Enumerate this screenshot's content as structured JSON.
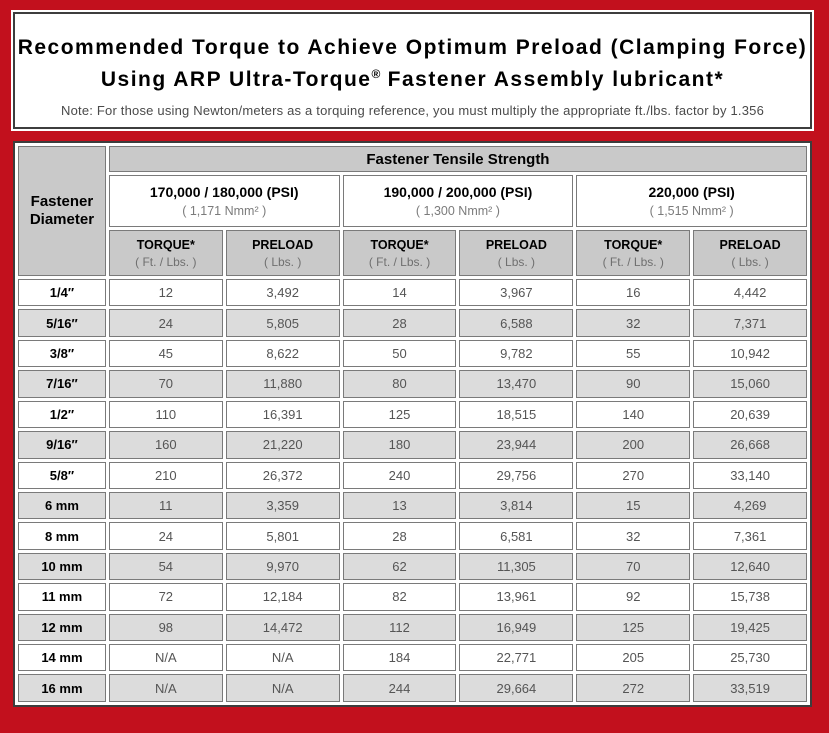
{
  "colors": {
    "frame_red": "#c2101d",
    "dark_border": "#3d3d3d",
    "header_gray": "#c9c9c9",
    "stripe_gray": "#dcdcdc",
    "value_text": "#555555"
  },
  "title": {
    "line1": "Recommended Torque to Achieve Optimum Preload (Clamping Force)",
    "line2_pre": "Using ARP Ultra-Torque",
    "line2_reg": "®",
    "line2_post": " Fastener Assembly lubricant*",
    "note": "Note: For those using Newton/meters as a torquing reference, you must multiply the appropriate ft./lbs. factor by 1.356"
  },
  "table": {
    "corner_header": "Fastener Diameter",
    "group_header": "Fastener Tensile Strength",
    "strength_groups": [
      {
        "psi": "170,000 / 180,000 (PSI)",
        "nmm": "( 1,171 Nmm² )"
      },
      {
        "psi": "190,000 / 200,000 (PSI)",
        "nmm": "( 1,300 Nmm² )"
      },
      {
        "psi": "220,000 (PSI)",
        "nmm": "( 1,515 Nmm² )"
      }
    ],
    "col_headers": [
      {
        "label": "TORQUE*",
        "sub": "( Ft. / Lbs. )"
      },
      {
        "label": "PRELOAD",
        "sub": "( Lbs. )"
      }
    ],
    "rows": [
      {
        "diameter": "1/4″",
        "values": [
          "12",
          "3,492",
          "14",
          "3,967",
          "16",
          "4,442"
        ]
      },
      {
        "diameter": "5/16″",
        "values": [
          "24",
          "5,805",
          "28",
          "6,588",
          "32",
          "7,371"
        ]
      },
      {
        "diameter": "3/8″",
        "values": [
          "45",
          "8,622",
          "50",
          "9,782",
          "55",
          "10,942"
        ]
      },
      {
        "diameter": "7/16″",
        "values": [
          "70",
          "11,880",
          "80",
          "13,470",
          "90",
          "15,060"
        ]
      },
      {
        "diameter": "1/2″",
        "values": [
          "110",
          "16,391",
          "125",
          "18,515",
          "140",
          "20,639"
        ]
      },
      {
        "diameter": "9/16″",
        "values": [
          "160",
          "21,220",
          "180",
          "23,944",
          "200",
          "26,668"
        ]
      },
      {
        "diameter": "5/8″",
        "values": [
          "210",
          "26,372",
          "240",
          "29,756",
          "270",
          "33,140"
        ]
      },
      {
        "diameter": "6 mm",
        "values": [
          "11",
          "3,359",
          "13",
          "3,814",
          "15",
          "4,269"
        ]
      },
      {
        "diameter": "8 mm",
        "values": [
          "24",
          "5,801",
          "28",
          "6,581",
          "32",
          "7,361"
        ]
      },
      {
        "diameter": "10 mm",
        "values": [
          "54",
          "9,970",
          "62",
          "11,305",
          "70",
          "12,640"
        ]
      },
      {
        "diameter": "11 mm",
        "values": [
          "72",
          "12,184",
          "82",
          "13,961",
          "92",
          "15,738"
        ]
      },
      {
        "diameter": "12 mm",
        "values": [
          "98",
          "14,472",
          "112",
          "16,949",
          "125",
          "19,425"
        ]
      },
      {
        "diameter": "14 mm",
        "values": [
          "N/A",
          "N/A",
          "184",
          "22,771",
          "205",
          "25,730"
        ]
      },
      {
        "diameter": "16 mm",
        "values": [
          "N/A",
          "N/A",
          "244",
          "29,664",
          "272",
          "33,519"
        ]
      }
    ]
  }
}
